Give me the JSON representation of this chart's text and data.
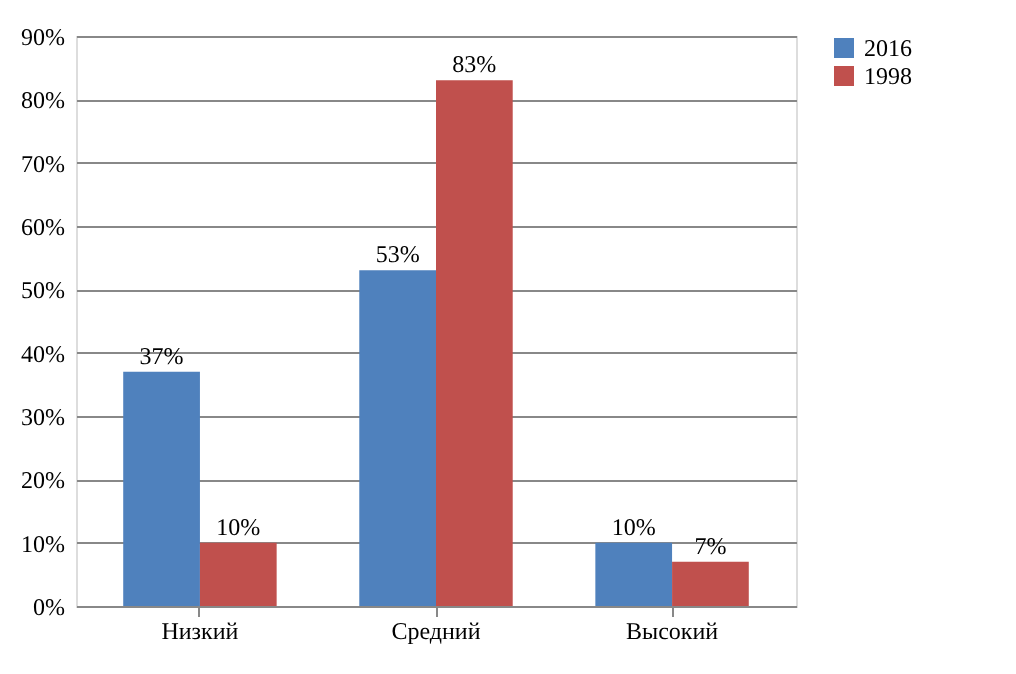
{
  "chart_data": {
    "type": "bar",
    "categories": [
      "Низкий",
      "Средний",
      "Высокий"
    ],
    "series": [
      {
        "name": "2016",
        "color": "#4f81bd",
        "values": [
          37,
          53,
          10
        ],
        "value_labels": [
          "37%",
          "53%",
          "10%"
        ]
      },
      {
        "name": "1998",
        "color": "#c0504d",
        "values": [
          10,
          83,
          7
        ],
        "value_labels": [
          "10%",
          "83%",
          "7%"
        ]
      }
    ],
    "ylim": [
      0,
      90
    ],
    "yticks": [
      {
        "value": 0,
        "label": "0%"
      },
      {
        "value": 10,
        "label": "10%"
      },
      {
        "value": 20,
        "label": "20%"
      },
      {
        "value": 30,
        "label": "30%"
      },
      {
        "value": 40,
        "label": "40%"
      },
      {
        "value": 50,
        "label": "50%"
      },
      {
        "value": 60,
        "label": "60%"
      },
      {
        "value": 70,
        "label": "70%"
      },
      {
        "value": 80,
        "label": "80%"
      },
      {
        "value": 90,
        "label": "90%"
      }
    ],
    "grid": "y",
    "legend": "right"
  }
}
